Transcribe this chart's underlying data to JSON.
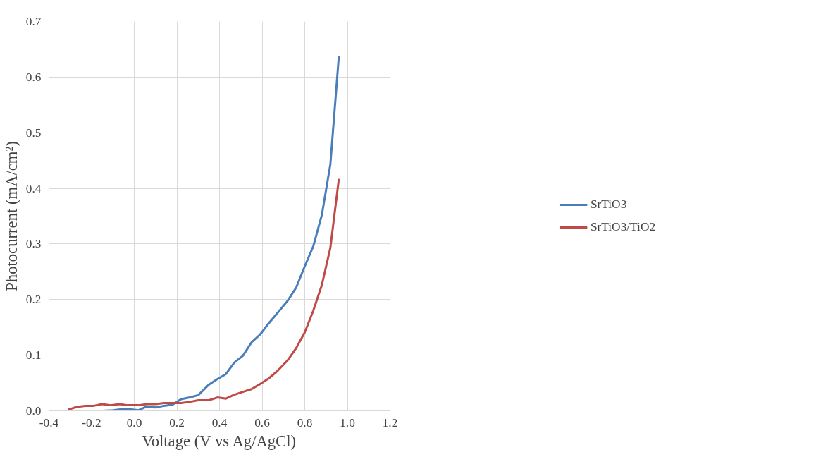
{
  "chart_data": {
    "type": "line",
    "xlabel": "Voltage (V vs Ag/AgCl)",
    "ylabel": "Photocurrent (mA/cm²)",
    "xlim": [
      -0.4,
      1.2
    ],
    "xticks": [
      {
        "value": -0.4,
        "label": "-0.4"
      },
      {
        "value": -0.2,
        "label": "-0.2"
      },
      {
        "value": 0,
        "label": "0.0"
      },
      {
        "value": 0.2,
        "label": "0.2"
      },
      {
        "value": 0.4,
        "label": "0.4"
      },
      {
        "value": 0.6,
        "label": "0.6"
      },
      {
        "value": 0.8,
        "label": "0.8"
      },
      {
        "value": 1,
        "label": "1.0"
      },
      {
        "value": 1.2,
        "label": "1.2"
      }
    ],
    "ylim": [
      0,
      0.7
    ],
    "yticks": [
      {
        "value": 0,
        "label": "0.0"
      },
      0.1,
      0.2,
      0.3,
      0.4,
      0.5,
      0.6,
      0.7
    ],
    "grid": true,
    "legend": "right",
    "line_style": "solid",
    "marker": "none",
    "series": [
      {
        "name": "SrTiO3",
        "color": "#4a7ebb",
        "x": [
          -0.4,
          -0.35,
          -0.2,
          -0.15,
          -0.1,
          -0.06,
          -0.02,
          0.02,
          0.06,
          0.1,
          0.14,
          0.18,
          0.22,
          0.26,
          0.3,
          0.35,
          0.39,
          0.43,
          0.47,
          0.51,
          0.55,
          0.59,
          0.63,
          0.67,
          0.72,
          0.76,
          0.8,
          0.84,
          0.88,
          0.92,
          0.96
        ],
        "values": [
          0,
          0,
          0,
          0,
          0.001,
          0.003,
          0.003,
          0.001,
          0.008,
          0.006,
          0.009,
          0.011,
          0.021,
          0.024,
          0.028,
          0.047,
          0.057,
          0.066,
          0.087,
          0.099,
          0.123,
          0.137,
          0.157,
          0.175,
          0.198,
          0.222,
          0.26,
          0.296,
          0.352,
          0.443,
          0.638
        ]
      },
      {
        "name": "SrTiO3/TiO2",
        "color": "#be4b48",
        "x": [
          -0.31,
          -0.27,
          -0.23,
          -0.19,
          -0.15,
          -0.11,
          -0.07,
          -0.03,
          0.02,
          0.06,
          0.1,
          0.14,
          0.18,
          0.22,
          0.26,
          0.3,
          0.35,
          0.39,
          0.43,
          0.47,
          0.51,
          0.55,
          0.59,
          0.63,
          0.67,
          0.72,
          0.76,
          0.8,
          0.84,
          0.88,
          0.92,
          0.96
        ],
        "values": [
          0.002,
          0.007,
          0.009,
          0.009,
          0.012,
          0.01,
          0.012,
          0.01,
          0.01,
          0.012,
          0.012,
          0.014,
          0.014,
          0.014,
          0.016,
          0.019,
          0.019,
          0.024,
          0.022,
          0.029,
          0.034,
          0.039,
          0.048,
          0.058,
          0.071,
          0.091,
          0.113,
          0.141,
          0.18,
          0.226,
          0.293,
          0.417
        ]
      }
    ]
  }
}
